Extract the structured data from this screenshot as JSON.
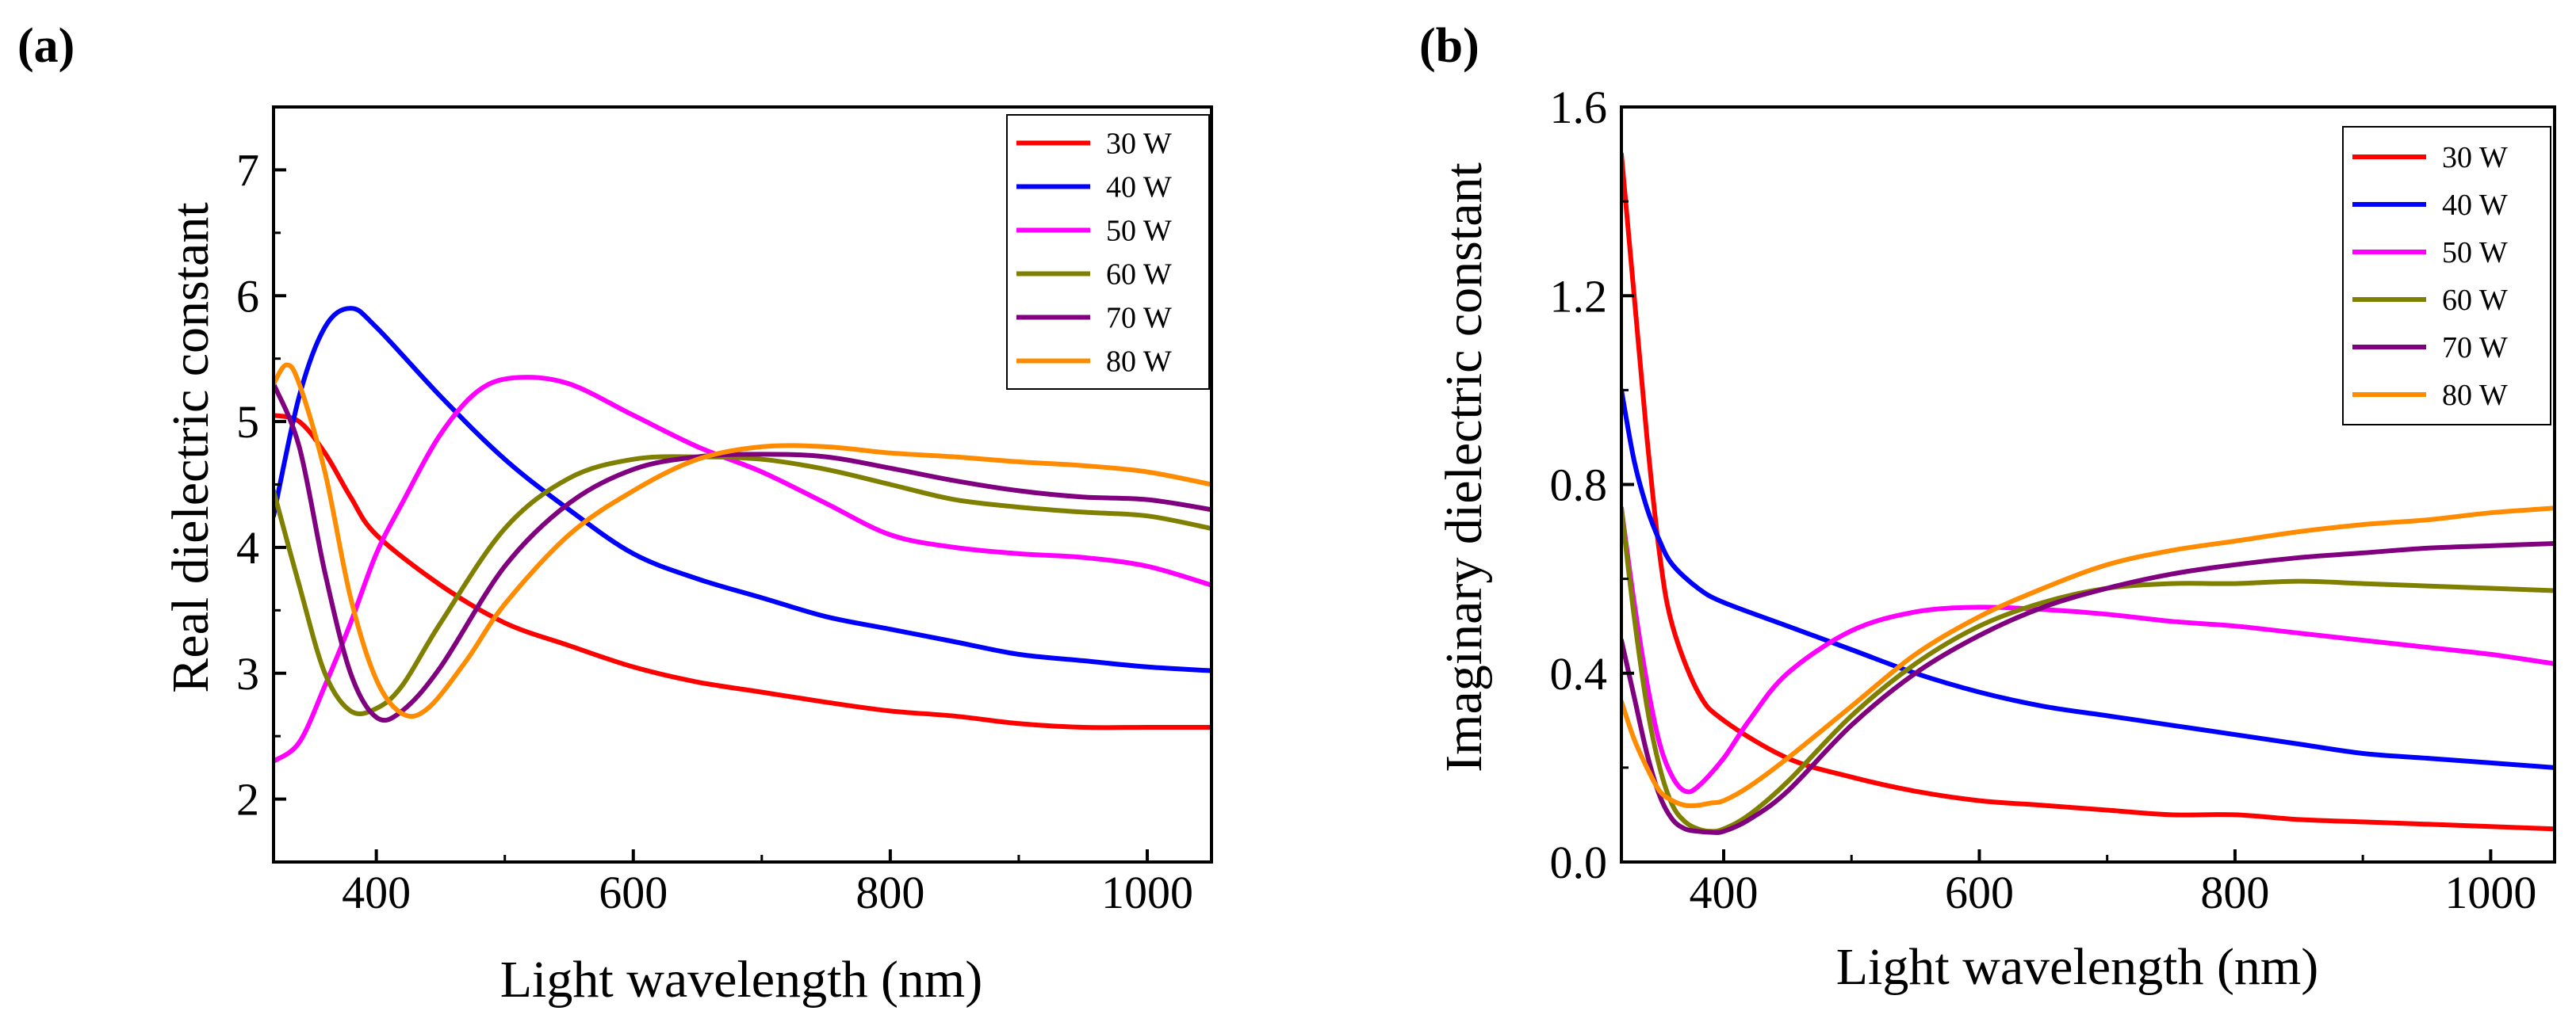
{
  "chart_data": [
    {
      "type": "line",
      "panel_label": "(a)",
      "xlabel": "Light wavelength (nm)",
      "ylabel": "Real dielectric constant",
      "xlim": [
        320,
        1050
      ],
      "ylim": [
        1.5,
        7.5
      ],
      "xticks": [
        400,
        600,
        800,
        1000
      ],
      "yticks": [
        2,
        3,
        4,
        5,
        6,
        7
      ],
      "legend_position": "top-right",
      "series": [
        {
          "name": "30 W",
          "color": "#ff0000",
          "x": [
            320,
            340,
            360,
            380,
            400,
            450,
            500,
            550,
            600,
            650,
            700,
            750,
            800,
            850,
            900,
            950,
            1000,
            1050
          ],
          "y": [
            5.05,
            5.0,
            4.75,
            4.4,
            4.1,
            3.7,
            3.4,
            3.22,
            3.05,
            2.93,
            2.85,
            2.77,
            2.7,
            2.66,
            2.6,
            2.57,
            2.57,
            2.57
          ]
        },
        {
          "name": "40 W",
          "color": "#0000ff",
          "x": [
            320,
            340,
            360,
            380,
            400,
            450,
            500,
            550,
            600,
            650,
            700,
            750,
            800,
            850,
            900,
            950,
            1000,
            1050
          ],
          "y": [
            4.25,
            5.2,
            5.75,
            5.9,
            5.75,
            5.2,
            4.7,
            4.3,
            3.95,
            3.75,
            3.6,
            3.45,
            3.35,
            3.25,
            3.15,
            3.1,
            3.05,
            3.02
          ]
        },
        {
          "name": "50 W",
          "color": "#ff00ff",
          "x": [
            320,
            340,
            360,
            380,
            400,
            420,
            450,
            480,
            510,
            550,
            600,
            650,
            700,
            750,
            800,
            850,
            900,
            950,
            1000,
            1050
          ],
          "y": [
            2.3,
            2.45,
            2.9,
            3.4,
            3.95,
            4.35,
            4.9,
            5.25,
            5.35,
            5.3,
            5.05,
            4.8,
            4.6,
            4.35,
            4.1,
            4.0,
            3.95,
            3.92,
            3.85,
            3.7
          ]
        },
        {
          "name": "60 W",
          "color": "#808000",
          "x": [
            320,
            340,
            360,
            380,
            400,
            420,
            450,
            500,
            550,
            600,
            650,
            700,
            750,
            800,
            850,
            900,
            950,
            1000,
            1050
          ],
          "y": [
            4.45,
            3.7,
            3.0,
            2.7,
            2.72,
            2.9,
            3.4,
            4.15,
            4.55,
            4.7,
            4.72,
            4.7,
            4.62,
            4.5,
            4.38,
            4.32,
            4.28,
            4.25,
            4.15
          ]
        },
        {
          "name": "70 W",
          "color": "#800080",
          "x": [
            320,
            340,
            360,
            380,
            400,
            420,
            450,
            500,
            550,
            600,
            650,
            700,
            750,
            800,
            850,
            900,
            950,
            1000,
            1050
          ],
          "y": [
            5.3,
            4.8,
            3.8,
            3.0,
            2.65,
            2.7,
            3.05,
            3.85,
            4.35,
            4.62,
            4.72,
            4.74,
            4.72,
            4.63,
            4.53,
            4.45,
            4.4,
            4.38,
            4.3
          ]
        },
        {
          "name": "80 W",
          "color": "#ff8c00",
          "x": [
            320,
            330,
            340,
            360,
            380,
            400,
            420,
            440,
            470,
            500,
            550,
            600,
            650,
            700,
            750,
            800,
            850,
            900,
            950,
            1000,
            1050
          ],
          "y": [
            5.3,
            5.45,
            5.3,
            4.6,
            3.6,
            2.95,
            2.68,
            2.72,
            3.1,
            3.55,
            4.1,
            4.45,
            4.7,
            4.8,
            4.8,
            4.75,
            4.72,
            4.68,
            4.65,
            4.6,
            4.5
          ]
        }
      ]
    },
    {
      "type": "line",
      "panel_label": "(b)",
      "xlabel": "Light wavelength (nm)",
      "ylabel": "Imaginary dielectric constant",
      "xlim": [
        320,
        1050
      ],
      "ylim": [
        0.0,
        1.6
      ],
      "xticks": [
        400,
        600,
        800,
        1000
      ],
      "yticks": [
        0.0,
        0.4,
        0.8,
        1.2,
        1.6
      ],
      "ytick_labels": [
        "0.0",
        "0.4",
        "0.8",
        "1.2",
        "1.6"
      ],
      "legend_position": "top-right",
      "series": [
        {
          "name": "30 W",
          "color": "#ff0000",
          "x": [
            320,
            330,
            340,
            350,
            360,
            380,
            400,
            450,
            500,
            550,
            600,
            650,
            700,
            750,
            800,
            850,
            900,
            950,
            1000,
            1050
          ],
          "y": [
            1.5,
            1.2,
            0.9,
            0.65,
            0.5,
            0.36,
            0.3,
            0.22,
            0.18,
            0.15,
            0.13,
            0.12,
            0.11,
            0.1,
            0.1,
            0.09,
            0.085,
            0.08,
            0.075,
            0.07
          ]
        },
        {
          "name": "40 W",
          "color": "#0000ff",
          "x": [
            320,
            330,
            340,
            350,
            360,
            380,
            400,
            450,
            500,
            550,
            600,
            650,
            700,
            750,
            800,
            850,
            900,
            950,
            1000,
            1050
          ],
          "y": [
            1.0,
            0.85,
            0.75,
            0.68,
            0.63,
            0.58,
            0.55,
            0.5,
            0.45,
            0.4,
            0.36,
            0.33,
            0.31,
            0.29,
            0.27,
            0.25,
            0.23,
            0.22,
            0.21,
            0.2
          ]
        },
        {
          "name": "50 W",
          "color": "#ff00ff",
          "x": [
            320,
            330,
            340,
            350,
            360,
            370,
            380,
            400,
            420,
            450,
            500,
            550,
            600,
            650,
            700,
            750,
            800,
            850,
            900,
            950,
            1000,
            1050
          ],
          "y": [
            0.75,
            0.55,
            0.38,
            0.25,
            0.18,
            0.15,
            0.16,
            0.22,
            0.3,
            0.4,
            0.49,
            0.53,
            0.54,
            0.535,
            0.525,
            0.51,
            0.5,
            0.485,
            0.47,
            0.455,
            0.44,
            0.42
          ]
        },
        {
          "name": "60 W",
          "color": "#808000",
          "x": [
            320,
            330,
            340,
            350,
            360,
            370,
            380,
            390,
            400,
            420,
            450,
            500,
            550,
            600,
            650,
            700,
            750,
            800,
            850,
            900,
            950,
            1000,
            1050
          ],
          "y": [
            0.75,
            0.52,
            0.33,
            0.2,
            0.12,
            0.085,
            0.07,
            0.065,
            0.07,
            0.1,
            0.17,
            0.31,
            0.42,
            0.5,
            0.55,
            0.58,
            0.59,
            0.59,
            0.595,
            0.59,
            0.585,
            0.58,
            0.575
          ]
        },
        {
          "name": "70 W",
          "color": "#800080",
          "x": [
            320,
            330,
            340,
            350,
            360,
            370,
            380,
            390,
            400,
            420,
            450,
            500,
            550,
            600,
            650,
            700,
            750,
            800,
            850,
            900,
            950,
            1000,
            1050
          ],
          "y": [
            0.47,
            0.35,
            0.23,
            0.14,
            0.09,
            0.07,
            0.065,
            0.063,
            0.065,
            0.09,
            0.15,
            0.29,
            0.4,
            0.48,
            0.54,
            0.58,
            0.61,
            0.63,
            0.645,
            0.655,
            0.665,
            0.67,
            0.675
          ]
        },
        {
          "name": "80 W",
          "color": "#ff8c00",
          "x": [
            320,
            330,
            340,
            350,
            360,
            370,
            380,
            390,
            400,
            420,
            450,
            500,
            550,
            600,
            650,
            700,
            750,
            800,
            850,
            900,
            950,
            1000,
            1050
          ],
          "y": [
            0.34,
            0.26,
            0.2,
            0.15,
            0.13,
            0.12,
            0.12,
            0.125,
            0.13,
            0.16,
            0.22,
            0.33,
            0.44,
            0.52,
            0.58,
            0.63,
            0.66,
            0.68,
            0.7,
            0.715,
            0.725,
            0.74,
            0.75
          ]
        }
      ]
    }
  ]
}
